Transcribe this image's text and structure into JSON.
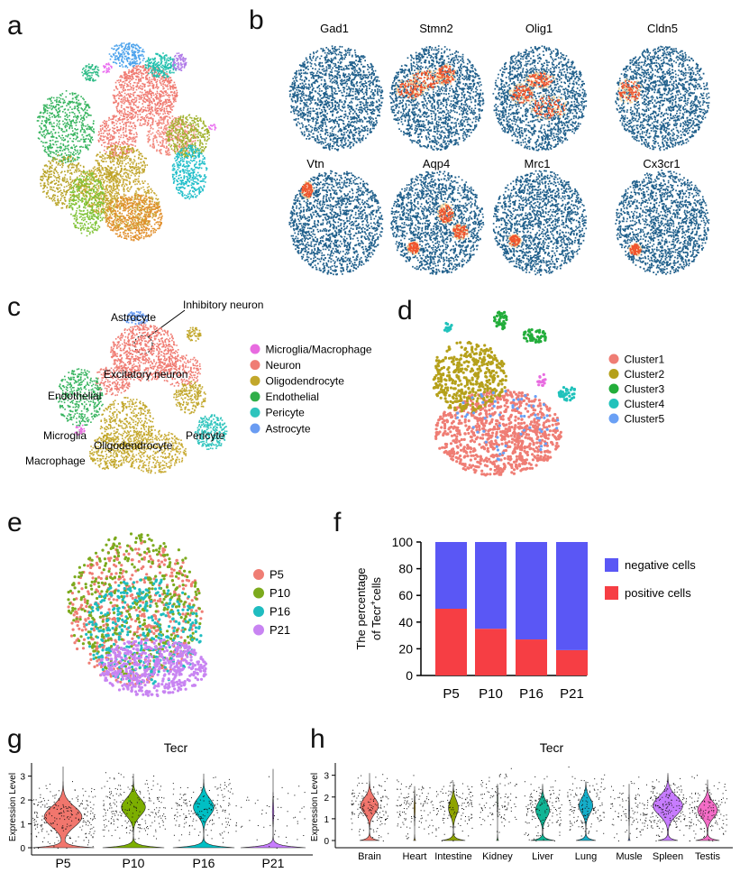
{
  "panel_letters": [
    "a",
    "b",
    "c",
    "d",
    "e",
    "f",
    "g",
    "h"
  ],
  "panel_b": {
    "genes": [
      "Gad1",
      "Stmn2",
      "Olig1",
      "Cldn5",
      "Vtn",
      "Aqp4",
      "Mrc1",
      "Cx3cr1"
    ]
  },
  "panel_c": {
    "annotations": [
      "Astrocyte",
      "Inhibitory neuron",
      "Excitatory neuron",
      "Endothelial",
      "Microglia",
      "Macrophage",
      "Oligodendrocyte",
      "Pericyte"
    ],
    "legend": [
      {
        "label": "Microglia/Macrophage",
        "color": "#e86be0"
      },
      {
        "label": "Neuron",
        "color": "#ef7d74"
      },
      {
        "label": "Oligodendrocyte",
        "color": "#c2a72b"
      },
      {
        "label": "Endothelial",
        "color": "#2fae48"
      },
      {
        "label": "Pericyte",
        "color": "#2ec4bd"
      },
      {
        "label": "Astrocyte",
        "color": "#6a9cf2"
      }
    ]
  },
  "panel_d": {
    "legend": [
      {
        "label": "Cluster1",
        "color": "#ef7d74"
      },
      {
        "label": "Cluster2",
        "color": "#b5a01a"
      },
      {
        "label": "Cluster3",
        "color": "#22ad3a"
      },
      {
        "label": "Cluster4",
        "color": "#20c2bb"
      },
      {
        "label": "Cluster5",
        "color": "#6aa0f5"
      }
    ]
  },
  "panel_e": {
    "legend": [
      {
        "label": "P5",
        "color": "#ef7d74"
      },
      {
        "label": "P10",
        "color": "#7caa1d"
      },
      {
        "label": "P16",
        "color": "#1fbcc0"
      },
      {
        "label": "P21",
        "color": "#c884f2"
      }
    ]
  },
  "chart_data": {
    "type": "bar",
    "stacked": true,
    "ylabel_line1": "The percentage",
    "ylabel_line2_pre": "of Tecr",
    "ylabel_line2_sup": "+",
    "ylabel_line2_post": "cells",
    "categories": [
      "P5",
      "P10",
      "P16",
      "P21"
    ],
    "ylim": [
      0,
      100
    ],
    "yticks": [
      "0",
      "20",
      "40",
      "60",
      "80",
      "100"
    ],
    "series": [
      {
        "name": "positive cells",
        "color": "#f63e44",
        "values": [
          50,
          35,
          27,
          19
        ]
      },
      {
        "name": "negative cells",
        "color": "#5a57f5",
        "values": [
          50,
          65,
          73,
          81
        ]
      }
    ],
    "legend_order": [
      "negative cells",
      "positive cells"
    ]
  },
  "panel_g": {
    "title": "Tecr",
    "ylabel": "Expression Level",
    "yticks": [
      "0",
      "1",
      "2",
      "3"
    ],
    "categories": [
      "P5",
      "P10",
      "P16",
      "P21"
    ],
    "colors": [
      "#f1766d",
      "#7cae00",
      "#00bfc4",
      "#c77cff"
    ]
  },
  "panel_h": {
    "title": "Tecr",
    "ylabel": "Expression Level",
    "yticks": [
      "0",
      "1",
      "2",
      "3"
    ],
    "categories": [
      "Brain",
      "Heart",
      "Intestine",
      "Kidney",
      "Liver",
      "Lung",
      "Musle",
      "Spleen",
      "Testis"
    ],
    "colors": [
      "#f1766d",
      "#c9a52a",
      "#8ea300",
      "#3fb34f",
      "#10b595",
      "#15adc9",
      "#7195ff",
      "#c77cff",
      "#f46cc7"
    ]
  }
}
